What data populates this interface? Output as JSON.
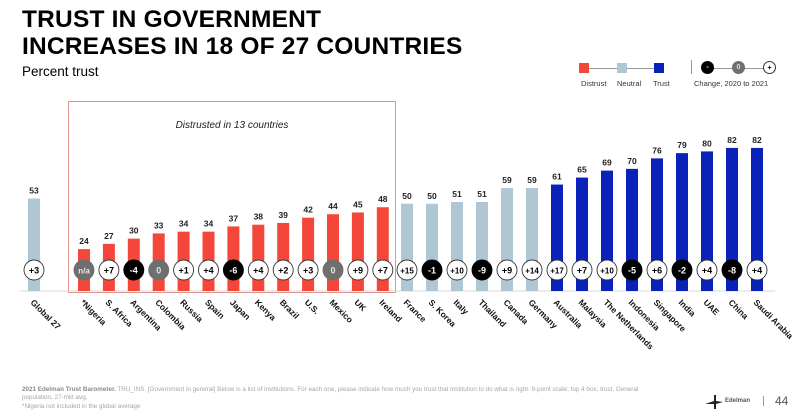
{
  "header": {
    "title_line1": "TRUST IN GOVERNMENT",
    "title_line2": "INCREASES IN 18 OF 27 COUNTRIES",
    "subtitle": "Percent trust"
  },
  "legend": {
    "distrust": "Distrust",
    "neutral": "Neutral",
    "trust": "Trust",
    "change_negative": "-",
    "change_zero": "0",
    "change_positive": "+",
    "change_label": "Change, 2020 to 2021"
  },
  "colors": {
    "distrust": "#f4473a",
    "neutral": "#aec7d3",
    "trust": "#0a22b8",
    "change_negative": "#000000",
    "change_zero": "#6f6f6f",
    "change_positive": "#ffffff"
  },
  "annotation": {
    "text": "Distrusted in 13 countries"
  },
  "chart_data": {
    "type": "bar",
    "title": "TRUST IN GOVERNMENT INCREASES IN 18 OF 27 COUNTRIES",
    "subtitle": "Percent trust",
    "xlabel": "",
    "ylabel": "Percent trust",
    "ylim": [
      0,
      100
    ],
    "grid": false,
    "legend_position": "top-right",
    "categories": [
      "Global 27",
      "*Nigeria",
      "S. Africa",
      "Argentina",
      "Colombia",
      "Russia",
      "Spain",
      "Japan",
      "Kenya",
      "Brazil",
      "U.S.",
      "Mexico",
      "UK",
      "Ireland",
      "France",
      "S. Korea",
      "Italy",
      "Thailand",
      "Canada",
      "Germany",
      "Australia",
      "Malaysia",
      "The Netherlands",
      "Indonesia",
      "Singapore",
      "India",
      "UAE",
      "China",
      "Saudi Arabia"
    ],
    "values": [
      53,
      24,
      27,
      30,
      33,
      34,
      34,
      37,
      38,
      39,
      42,
      44,
      45,
      48,
      50,
      50,
      51,
      51,
      59,
      59,
      61,
      65,
      69,
      70,
      76,
      79,
      80,
      82,
      82
    ],
    "trust_level": [
      "neutral",
      "distrust",
      "distrust",
      "distrust",
      "distrust",
      "distrust",
      "distrust",
      "distrust",
      "distrust",
      "distrust",
      "distrust",
      "distrust",
      "distrust",
      "distrust",
      "neutral",
      "neutral",
      "neutral",
      "neutral",
      "neutral",
      "neutral",
      "trust",
      "trust",
      "trust",
      "trust",
      "trust",
      "trust",
      "trust",
      "trust",
      "trust"
    ],
    "change_2020_to_2021": [
      "+3",
      "n/a",
      "+7",
      "-4",
      "0",
      "+1",
      "+4",
      "-6",
      "+4",
      "+2",
      "+3",
      "0",
      "+9",
      "+7",
      "+15",
      "-1",
      "+10",
      "-9",
      "+9",
      "+14",
      "+17",
      "+7",
      "+10",
      "-5",
      "+6",
      "-2",
      "+4",
      "-8",
      "+4"
    ],
    "annotations": [
      "Distrusted in 13 countries"
    ]
  },
  "footer": {
    "source_bold": "2021 Edelman Trust Barometer.",
    "source_text": " TRU_INS. [Government in general] Below is a list of institutions. For each one, please indicate how much you trust that institution to do what is right. 9-point scale; top 4 box, trust. General population, 27-mkt avg.",
    "note": "*Nigeria not included in the global average",
    "brand": "Edelman",
    "page_number": "44"
  }
}
